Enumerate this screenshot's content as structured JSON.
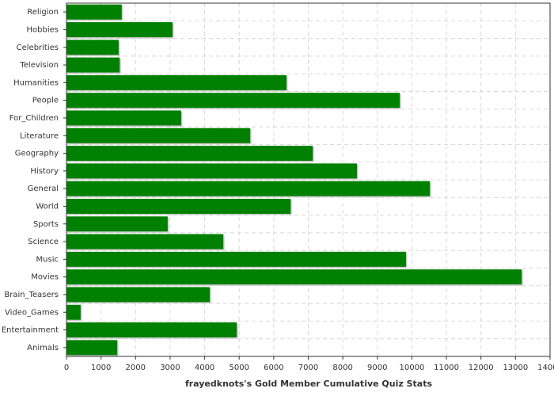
{
  "chart_data": {
    "type": "barh",
    "xlabel": "frayedknots's Gold Member Cumulative Quiz Stats",
    "categories": [
      "Religion",
      "Hobbies",
      "Celebrities",
      "Television",
      "Humanities",
      "People",
      "For_Children",
      "Literature",
      "Geography",
      "History",
      "General",
      "World",
      "Sports",
      "Science",
      "Music",
      "Movies",
      "Brain_Teasers",
      "Video_Games",
      "Entertainment",
      "Animals"
    ],
    "values": [
      1600,
      3070,
      1510,
      1540,
      6370,
      9650,
      3320,
      5320,
      7130,
      8410,
      10520,
      6490,
      2930,
      4540,
      9830,
      13180,
      4150,
      410,
      4930,
      1470
    ],
    "color": "#008000",
    "xlim": [
      0,
      14000
    ],
    "xticks": [
      0,
      1000,
      2000,
      3000,
      4000,
      5000,
      6000,
      7000,
      8000,
      9000,
      10000,
      11000,
      12000,
      13000,
      14000
    ],
    "grid": true
  }
}
